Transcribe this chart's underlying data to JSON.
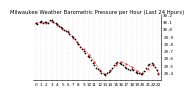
{
  "title": "Milwaukee Weather Barometric Pressure per Hour (Last 24 Hours)",
  "bg_color": "#ffffff",
  "plot_bg_color": "#ffffff",
  "grid_color": "#bbbbbb",
  "line_color": "#ff0000",
  "dot_color": "#000000",
  "hours": [
    0,
    1,
    2,
    3,
    4,
    5,
    6,
    7,
    8,
    9,
    10,
    11,
    12,
    13,
    14,
    15,
    16,
    17,
    18,
    19,
    20,
    21,
    22,
    23
  ],
  "pressure": [
    30.08,
    30.1,
    30.09,
    30.11,
    30.06,
    30.0,
    29.97,
    29.88,
    29.8,
    29.72,
    29.65,
    29.55,
    29.43,
    29.38,
    29.42,
    29.5,
    29.55,
    29.52,
    29.48,
    29.42,
    29.38,
    29.45,
    29.52,
    29.4
  ],
  "scatter_x": [
    0,
    0.3,
    0.7,
    1,
    1.3,
    1.7,
    2,
    2.3,
    2.7,
    3,
    3.3,
    3.7,
    4,
    4.3,
    4.7,
    5,
    5.3,
    5.7,
    6,
    6.3,
    6.7,
    7,
    7.3,
    7.7,
    8,
    8.3,
    8.7,
    9,
    9.3,
    9.7,
    10,
    10.3,
    10.7,
    11,
    11.3,
    11.7,
    12,
    12.3,
    12.7,
    13,
    13.3,
    13.7,
    14,
    14.3,
    14.7,
    15,
    15.3,
    15.7,
    16,
    16.3,
    16.7,
    17,
    17.3,
    17.7,
    18,
    18.3,
    18.7,
    19,
    19.3,
    19.7,
    20,
    20.3,
    20.7,
    21,
    21.3,
    21.7,
    22,
    22.3,
    22.7,
    23
  ],
  "scatter_y": [
    30.09,
    30.07,
    30.1,
    30.11,
    30.09,
    30.1,
    30.1,
    30.08,
    30.12,
    30.12,
    30.1,
    30.08,
    30.07,
    30.05,
    30.03,
    30.01,
    29.99,
    29.97,
    29.96,
    29.94,
    29.91,
    29.89,
    29.86,
    29.82,
    29.79,
    29.76,
    29.73,
    29.7,
    29.67,
    29.63,
    29.61,
    29.58,
    29.54,
    29.51,
    29.47,
    29.45,
    29.42,
    29.39,
    29.38,
    29.37,
    29.39,
    29.41,
    29.44,
    29.47,
    29.51,
    29.53,
    29.55,
    29.53,
    29.52,
    29.5,
    29.48,
    29.47,
    29.45,
    29.44,
    29.45,
    29.43,
    29.41,
    29.4,
    29.39,
    29.38,
    29.39,
    29.42,
    29.47,
    29.5,
    29.52,
    29.54,
    29.51,
    29.48,
    29.43,
    29.38
  ],
  "ylim": [
    29.3,
    30.2
  ],
  "yticks": [
    29.4,
    29.5,
    29.6,
    29.7,
    29.8,
    29.9,
    30.0,
    30.1,
    30.2
  ],
  "xlim": [
    -0.5,
    23.5
  ],
  "xtick_positions": [
    0,
    1,
    2,
    3,
    4,
    5,
    6,
    7,
    8,
    9,
    10,
    11,
    12,
    13,
    14,
    15,
    16,
    17,
    18,
    19,
    20,
    21,
    22,
    23
  ],
  "xtick_labels": [
    "0",
    "1",
    "2",
    "3",
    "4",
    "5",
    "6",
    "7",
    "8",
    "9",
    "10",
    "11",
    "12",
    "13",
    "14",
    "15",
    "16",
    "17",
    "18",
    "19",
    "20",
    "21",
    "22",
    "23"
  ],
  "title_fontsize": 3.8,
  "tick_fontsize": 3.0,
  "linewidth": 0.6,
  "markersize": 0.8,
  "scatter_markersize": 1.5
}
